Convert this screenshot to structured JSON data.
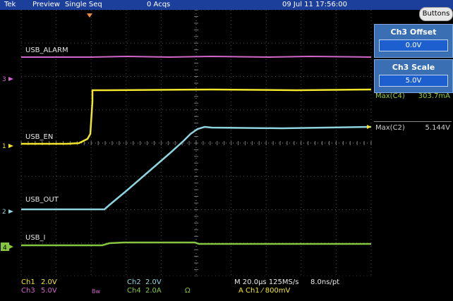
{
  "status_bar": {
    "brand": "Tek",
    "mode": "Preview",
    "acq_mode": "Single Seq",
    "acqs": "0 Acqs",
    "datetime": "09 Jul 11 17:56:00"
  },
  "buttons_label": "Buttons",
  "ch3_offset": {
    "title": "Ch3 Offset",
    "value": "0.0V"
  },
  "ch3_scale": {
    "title": "Ch3 Scale",
    "value": "5.0V"
  },
  "measurements": [
    {
      "label": "Max(C4)",
      "value": "303.7mA",
      "color": "#9acd32"
    },
    {
      "label": "Max(C2)",
      "value": "5.144V",
      "color": "#cfcfcf"
    }
  ],
  "trace_labels": {
    "alarm": "USB_ALARM",
    "en": "USB_EN",
    "out": "USB_OUT",
    "i": "USB_I"
  },
  "channel_markers": {
    "ch3": "3",
    "ch1": "1",
    "ch2": "2",
    "ch4": "4"
  },
  "colors": {
    "ch1": "#f2e52b",
    "ch2": "#8fd3de",
    "ch3": "#d066c9",
    "ch4": "#86c540",
    "grid": "#4d4d4d"
  },
  "bottom": {
    "ch1_name": "Ch1",
    "ch1_scale": "2.0V",
    "ch2_name": "Ch2",
    "ch2_scale": "2.0V",
    "ch3_name": "Ch3",
    "ch3_scale": "5.0V",
    "bw": "Bw",
    "ch4_name": "Ch4",
    "ch4_scale": "2.0A",
    "ohm": "Ω",
    "timebase": "M 20.0µs 125MS/s",
    "resolution": "8.0ns/pt",
    "trigger": "A  Ch1  ⁄  800mV"
  }
}
